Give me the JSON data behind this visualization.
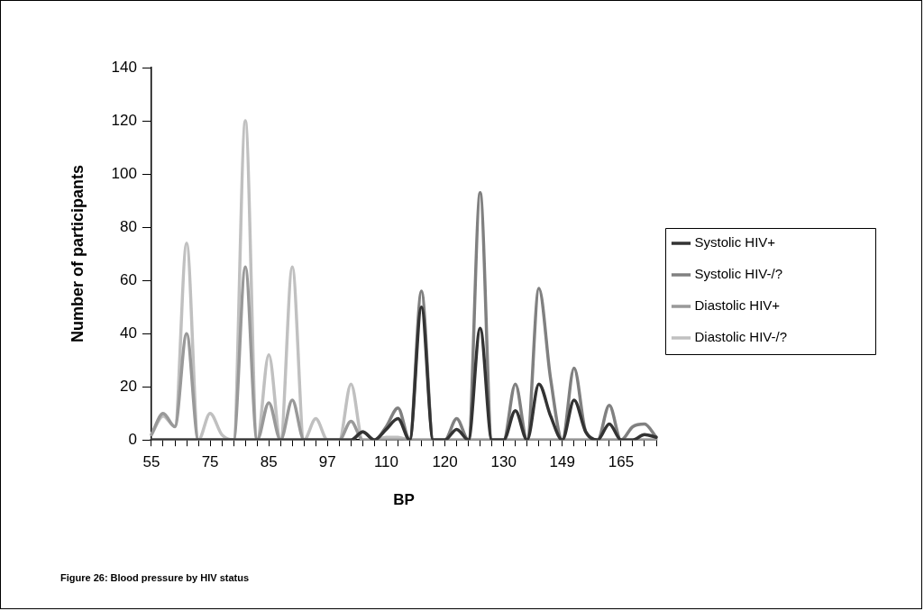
{
  "chart_data": {
    "type": "line",
    "xlabel": "BP",
    "ylabel": "Number of participants",
    "categories": [
      "55",
      null,
      null,
      null,
      null,
      "75",
      null,
      null,
      null,
      null,
      "85",
      null,
      null,
      null,
      null,
      "97",
      null,
      null,
      null,
      null,
      "110",
      null,
      null,
      null,
      null,
      "120",
      null,
      null,
      null,
      null,
      "130",
      null,
      null,
      null,
      null,
      "149",
      null,
      null,
      null,
      null,
      "165",
      null,
      null,
      null
    ],
    "series": [
      {
        "name": "Systolic HIV+",
        "color": "#333333",
        "values": [
          0,
          0,
          0,
          0,
          0,
          0,
          0,
          0,
          0,
          0,
          0,
          0,
          0,
          0,
          0,
          0,
          0,
          0,
          3,
          0,
          4,
          8,
          0,
          50,
          0,
          0,
          4,
          0,
          42,
          0,
          0,
          11,
          0,
          21,
          9,
          0,
          15,
          3,
          0,
          6,
          0,
          0,
          2,
          1
        ]
      },
      {
        "name": "Systolic HIV-/?",
        "color": "#808080",
        "values": [
          0,
          0,
          0,
          0,
          0,
          0,
          0,
          0,
          0,
          0,
          0,
          0,
          0,
          0,
          0,
          0,
          0,
          0,
          3,
          0,
          5,
          12,
          0,
          56,
          0,
          0,
          8,
          0,
          93,
          0,
          0,
          21,
          0,
          57,
          23,
          0,
          27,
          3,
          0,
          13,
          0,
          5,
          6,
          1
        ]
      },
      {
        "name": "Diastolic HIV+",
        "color": "#999999",
        "values": [
          2,
          10,
          5,
          40,
          0,
          0,
          0,
          0,
          65,
          0,
          14,
          0,
          15,
          0,
          0,
          0,
          0,
          7,
          0,
          0,
          0,
          0,
          0,
          0,
          0,
          0,
          0,
          0,
          0,
          0,
          0,
          0,
          0,
          0,
          0,
          0,
          0,
          0,
          0,
          0,
          0,
          0,
          0,
          0
        ]
      },
      {
        "name": "Diastolic HIV-/?",
        "color": "#c0c0c0",
        "values": [
          2,
          9,
          5,
          74,
          0,
          10,
          2,
          0,
          120,
          0,
          32,
          0,
          65,
          0,
          8,
          0,
          0,
          21,
          0,
          0,
          1,
          1,
          0,
          0,
          0,
          0,
          0,
          0,
          0,
          0,
          0,
          0,
          0,
          0,
          0,
          0,
          0,
          0,
          0,
          0,
          0,
          0,
          0,
          0
        ]
      }
    ],
    "ylim": [
      0,
      140
    ],
    "yticks": [
      0,
      20,
      40,
      60,
      80,
      100,
      120,
      140
    ],
    "grid": false,
    "legend": "right",
    "marker": "none",
    "line_style": "solid",
    "annotations": [
      "Figure 26: Blood pressure by HIV status"
    ]
  }
}
